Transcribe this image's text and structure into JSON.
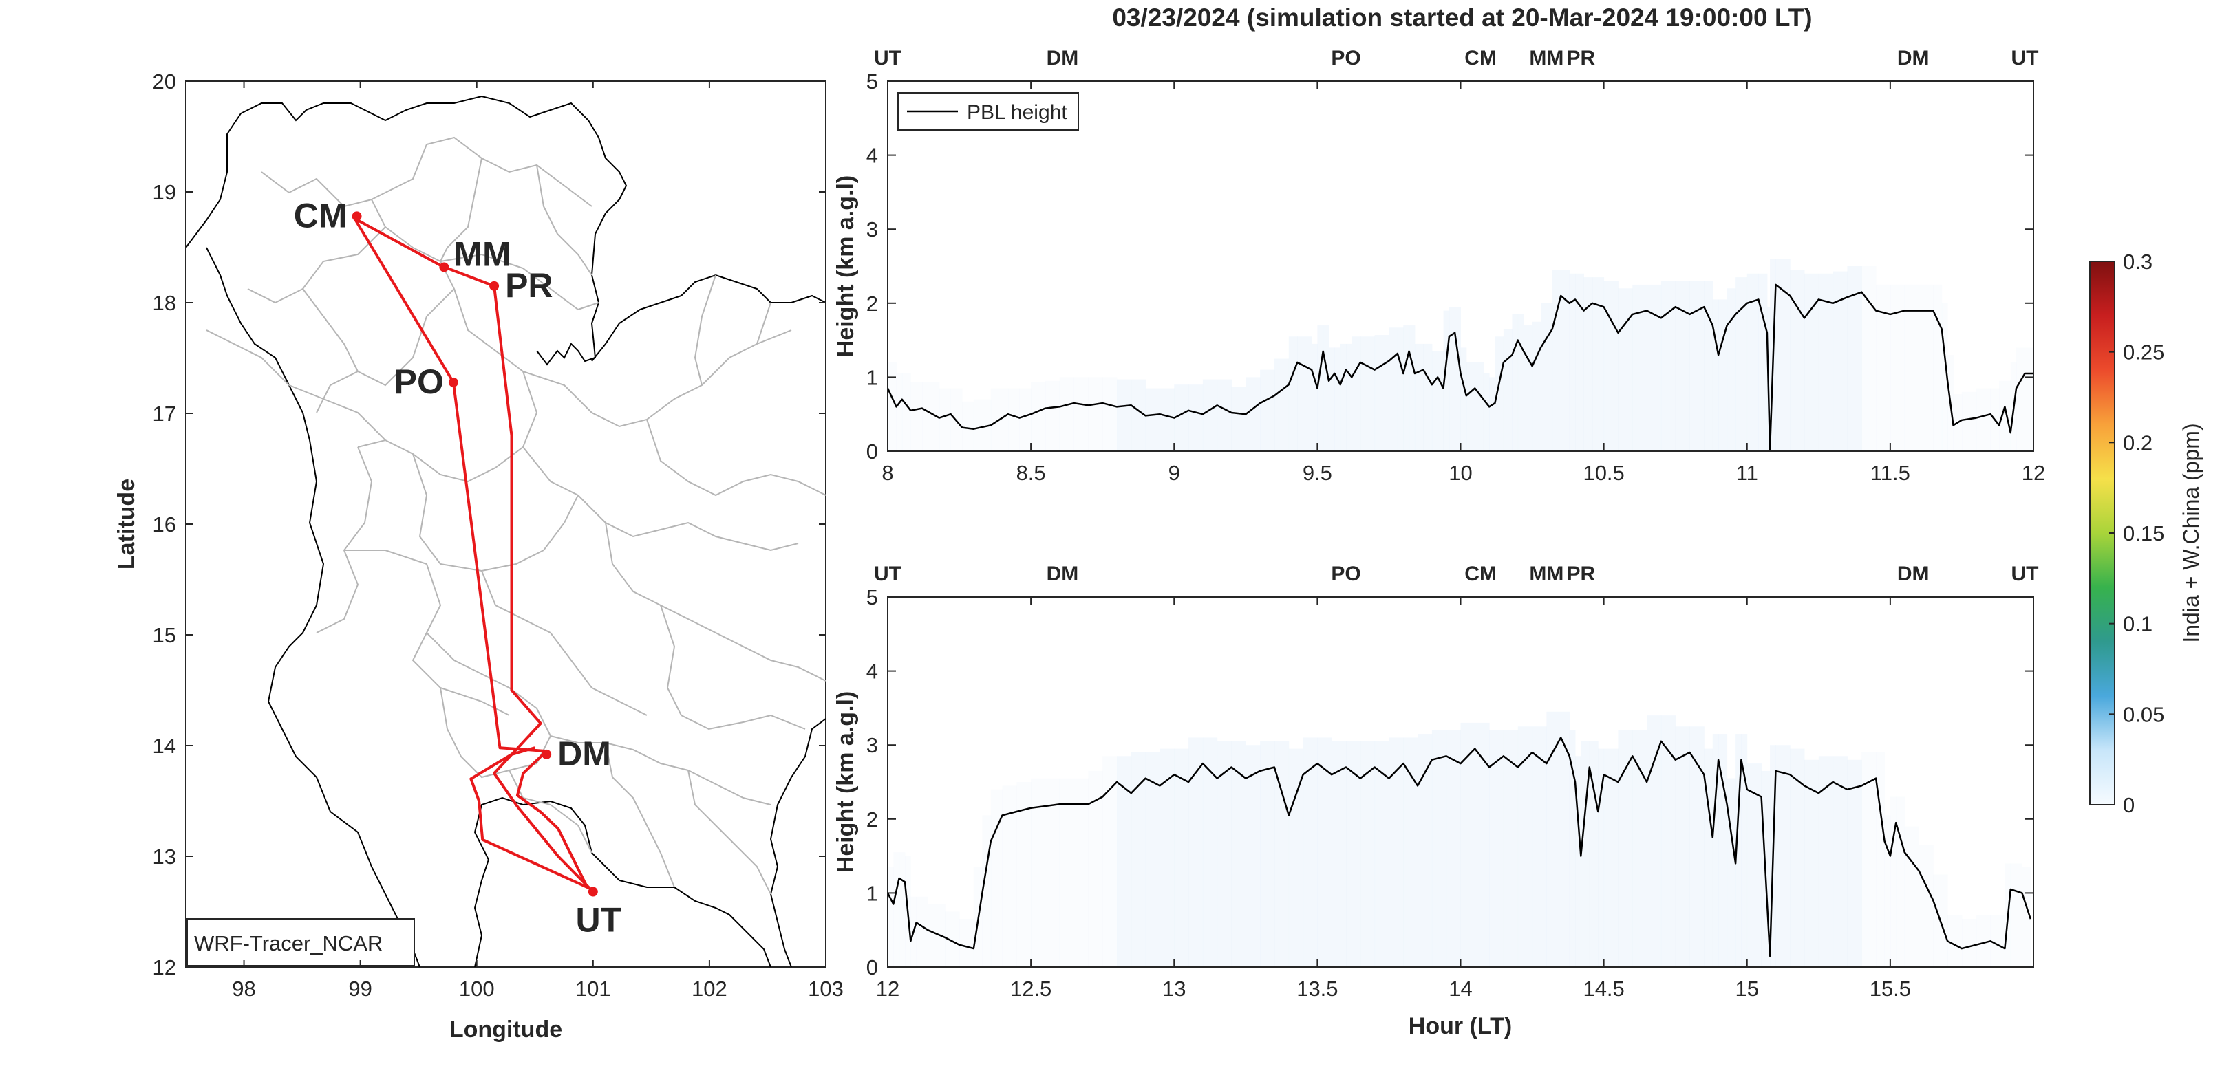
{
  "figure": {
    "title": "03/23/2024 (simulation started at 20-Mar-2024 19:00:00 LT)"
  },
  "map": {
    "xlabel": "Longitude",
    "ylabel": "Latitude",
    "xlim": [
      97.5,
      103
    ],
    "ylim": [
      12,
      20
    ],
    "xticks": [
      "98",
      "99",
      "100",
      "101",
      "102",
      "103"
    ],
    "yticks": [
      "12",
      "13",
      "14",
      "15",
      "16",
      "17",
      "18",
      "19",
      "20"
    ],
    "model_label": "WRF-Tracer_NCAR",
    "route_color": "#e8181b",
    "route": [
      [
        101.0,
        12.68
      ],
      [
        100.7,
        13.0
      ],
      [
        100.35,
        13.45
      ],
      [
        100.15,
        13.75
      ],
      [
        100.55,
        14.2
      ],
      [
        100.3,
        14.5
      ],
      [
        100.3,
        16.8
      ],
      [
        100.15,
        18.15
      ],
      [
        99.7,
        18.33
      ],
      [
        98.95,
        18.76
      ],
      [
        99.8,
        17.28
      ],
      [
        100.2,
        13.98
      ],
      [
        100.6,
        13.95
      ],
      [
        100.4,
        13.75
      ],
      [
        100.35,
        13.55
      ],
      [
        100.55,
        13.4
      ],
      [
        100.7,
        13.25
      ],
      [
        100.95,
        12.72
      ],
      [
        100.05,
        13.15
      ],
      [
        100.02,
        13.5
      ],
      [
        99.95,
        13.7
      ],
      [
        100.3,
        13.92
      ],
      [
        100.5,
        13.98
      ]
    ],
    "sites": [
      {
        "code": "CM",
        "lon": 98.97,
        "lat": 18.78,
        "color": "#d95319",
        "label_side": "left"
      },
      {
        "code": "MM",
        "lon": 99.72,
        "lat": 18.32,
        "color": "#edb120",
        "label_side": "right-up"
      },
      {
        "code": "PR",
        "lon": 100.15,
        "lat": 18.15,
        "color": "#7e2f8e",
        "label_side": "right"
      },
      {
        "code": "PO",
        "lon": 99.8,
        "lat": 17.28,
        "color": "#77ac30",
        "label_side": "left"
      },
      {
        "code": "DM",
        "lon": 100.6,
        "lat": 13.92,
        "color": "#4dbeee",
        "label_side": "right"
      },
      {
        "code": "UT",
        "lon": 101.0,
        "lat": 12.68,
        "color": "#111111",
        "label_side": "below"
      }
    ]
  },
  "chart_data": [
    {
      "type": "line",
      "ylabel": "Height (km a.g.l)",
      "xlabel": "",
      "xlim": [
        8,
        12
      ],
      "ylim": [
        0,
        5
      ],
      "xticks": [
        "8",
        "8.5",
        "9",
        "9.5",
        "10",
        "10.5",
        "11",
        "11.5",
        "12"
      ],
      "yticks": [
        "0",
        "1",
        "2",
        "3",
        "4",
        "5"
      ],
      "legend": {
        "label": "PBL height",
        "placement": "top-left"
      },
      "top_markers": [
        {
          "code": "UT",
          "x": 8.0,
          "color": "#111111"
        },
        {
          "code": "DM",
          "x": 8.61,
          "color": "#4dbeee"
        },
        {
          "code": "PO",
          "x": 9.6,
          "color": "#77ac30"
        },
        {
          "code": "CM",
          "x": 10.07,
          "color": "#d95319"
        },
        {
          "code": "MM",
          "x": 10.3,
          "color": "#edb120"
        },
        {
          "code": "PR",
          "x": 10.42,
          "color": "#7e2f8e"
        },
        {
          "code": "DM",
          "x": 11.58,
          "color": "#4dbeee"
        },
        {
          "code": "UT",
          "x": 11.97,
          "color": "#111111"
        }
      ],
      "series": [
        {
          "name": "PBL height",
          "color": "#000000",
          "points": [
            [
              8.0,
              0.85
            ],
            [
              8.03,
              0.6
            ],
            [
              8.05,
              0.7
            ],
            [
              8.08,
              0.55
            ],
            [
              8.12,
              0.58
            ],
            [
              8.18,
              0.45
            ],
            [
              8.22,
              0.5
            ],
            [
              8.26,
              0.32
            ],
            [
              8.3,
              0.3
            ],
            [
              8.36,
              0.35
            ],
            [
              8.42,
              0.5
            ],
            [
              8.46,
              0.45
            ],
            [
              8.5,
              0.5
            ],
            [
              8.55,
              0.58
            ],
            [
              8.6,
              0.6
            ],
            [
              8.65,
              0.65
            ],
            [
              8.7,
              0.62
            ],
            [
              8.75,
              0.65
            ],
            [
              8.8,
              0.6
            ],
            [
              8.85,
              0.62
            ],
            [
              8.9,
              0.48
            ],
            [
              8.95,
              0.5
            ],
            [
              9.0,
              0.45
            ],
            [
              9.05,
              0.55
            ],
            [
              9.1,
              0.5
            ],
            [
              9.15,
              0.62
            ],
            [
              9.2,
              0.52
            ],
            [
              9.25,
              0.5
            ],
            [
              9.3,
              0.65
            ],
            [
              9.35,
              0.75
            ],
            [
              9.4,
              0.9
            ],
            [
              9.43,
              1.2
            ],
            [
              9.48,
              1.1
            ],
            [
              9.5,
              0.85
            ],
            [
              9.52,
              1.35
            ],
            [
              9.54,
              0.95
            ],
            [
              9.56,
              1.05
            ],
            [
              9.58,
              0.9
            ],
            [
              9.6,
              1.1
            ],
            [
              9.62,
              1.0
            ],
            [
              9.65,
              1.2
            ],
            [
              9.7,
              1.1
            ],
            [
              9.75,
              1.22
            ],
            [
              9.78,
              1.32
            ],
            [
              9.8,
              1.05
            ],
            [
              9.82,
              1.35
            ],
            [
              9.84,
              1.05
            ],
            [
              9.87,
              1.1
            ],
            [
              9.9,
              0.9
            ],
            [
              9.92,
              1.0
            ],
            [
              9.94,
              0.85
            ],
            [
              9.96,
              1.55
            ],
            [
              9.98,
              1.6
            ],
            [
              10.0,
              1.05
            ],
            [
              10.02,
              0.75
            ],
            [
              10.05,
              0.85
            ],
            [
              10.08,
              0.7
            ],
            [
              10.1,
              0.6
            ],
            [
              10.12,
              0.65
            ],
            [
              10.15,
              1.2
            ],
            [
              10.18,
              1.3
            ],
            [
              10.2,
              1.5
            ],
            [
              10.22,
              1.35
            ],
            [
              10.25,
              1.15
            ],
            [
              10.28,
              1.4
            ],
            [
              10.32,
              1.65
            ],
            [
              10.35,
              2.1
            ],
            [
              10.38,
              2.0
            ],
            [
              10.4,
              2.05
            ],
            [
              10.43,
              1.9
            ],
            [
              10.46,
              2.0
            ],
            [
              10.5,
              1.95
            ],
            [
              10.55,
              1.6
            ],
            [
              10.6,
              1.85
            ],
            [
              10.65,
              1.9
            ],
            [
              10.7,
              1.8
            ],
            [
              10.75,
              1.95
            ],
            [
              10.8,
              1.85
            ],
            [
              10.85,
              1.95
            ],
            [
              10.88,
              1.7
            ],
            [
              10.9,
              1.3
            ],
            [
              10.93,
              1.7
            ],
            [
              10.96,
              1.85
            ],
            [
              11.0,
              2.0
            ],
            [
              11.04,
              2.05
            ],
            [
              11.07,
              1.6
            ],
            [
              11.08,
              0.02
            ],
            [
              11.1,
              2.25
            ],
            [
              11.15,
              2.1
            ],
            [
              11.2,
              1.8
            ],
            [
              11.25,
              2.05
            ],
            [
              11.3,
              2.0
            ],
            [
              11.35,
              2.08
            ],
            [
              11.4,
              2.15
            ],
            [
              11.45,
              1.9
            ],
            [
              11.5,
              1.85
            ],
            [
              11.55,
              1.9
            ],
            [
              11.65,
              1.9
            ],
            [
              11.68,
              1.65
            ],
            [
              11.7,
              0.95
            ],
            [
              11.72,
              0.35
            ],
            [
              11.75,
              0.42
            ],
            [
              11.8,
              0.45
            ],
            [
              11.85,
              0.5
            ],
            [
              11.88,
              0.35
            ],
            [
              11.9,
              0.6
            ],
            [
              11.92,
              0.25
            ],
            [
              11.94,
              0.85
            ],
            [
              11.97,
              1.05
            ],
            [
              12.0,
              1.05
            ]
          ]
        }
      ]
    },
    {
      "type": "line",
      "ylabel": "Height (km a.g.l)",
      "xlabel": "Hour (LT)",
      "xlim": [
        12,
        16
      ],
      "ylim": [
        0,
        5
      ],
      "xticks": [
        "12",
        "12.5",
        "13",
        "13.5",
        "14",
        "14.5",
        "15",
        "15.5"
      ],
      "yticks": [
        "0",
        "1",
        "2",
        "3",
        "4",
        "5"
      ],
      "top_markers": [
        {
          "code": "UT",
          "x": 12.0,
          "color": "#111111"
        },
        {
          "code": "DM",
          "x": 12.61,
          "color": "#4dbeee"
        },
        {
          "code": "PO",
          "x": 13.6,
          "color": "#77ac30"
        },
        {
          "code": "CM",
          "x": 14.07,
          "color": "#d95319"
        },
        {
          "code": "MM",
          "x": 14.3,
          "color": "#edb120"
        },
        {
          "code": "PR",
          "x": 14.42,
          "color": "#7e2f8e"
        },
        {
          "code": "DM",
          "x": 15.58,
          "color": "#4dbeee"
        },
        {
          "code": "UT",
          "x": 15.97,
          "color": "#111111"
        }
      ],
      "series": [
        {
          "name": "PBL height",
          "color": "#000000",
          "points": [
            [
              12.0,
              1.0
            ],
            [
              12.02,
              0.85
            ],
            [
              12.04,
              1.2
            ],
            [
              12.06,
              1.15
            ],
            [
              12.08,
              0.35
            ],
            [
              12.1,
              0.6
            ],
            [
              12.14,
              0.5
            ],
            [
              12.2,
              0.4
            ],
            [
              12.25,
              0.3
            ],
            [
              12.3,
              0.25
            ],
            [
              12.33,
              1.0
            ],
            [
              12.36,
              1.7
            ],
            [
              12.4,
              2.05
            ],
            [
              12.45,
              2.1
            ],
            [
              12.5,
              2.15
            ],
            [
              12.6,
              2.2
            ],
            [
              12.7,
              2.2
            ],
            [
              12.75,
              2.3
            ],
            [
              12.8,
              2.5
            ],
            [
              12.85,
              2.35
            ],
            [
              12.9,
              2.55
            ],
            [
              12.95,
              2.45
            ],
            [
              13.0,
              2.6
            ],
            [
              13.05,
              2.5
            ],
            [
              13.1,
              2.75
            ],
            [
              13.15,
              2.55
            ],
            [
              13.2,
              2.7
            ],
            [
              13.25,
              2.55
            ],
            [
              13.3,
              2.65
            ],
            [
              13.35,
              2.7
            ],
            [
              13.4,
              2.05
            ],
            [
              13.45,
              2.6
            ],
            [
              13.5,
              2.75
            ],
            [
              13.55,
              2.6
            ],
            [
              13.6,
              2.7
            ],
            [
              13.65,
              2.55
            ],
            [
              13.7,
              2.7
            ],
            [
              13.75,
              2.55
            ],
            [
              13.8,
              2.75
            ],
            [
              13.85,
              2.45
            ],
            [
              13.9,
              2.8
            ],
            [
              13.95,
              2.85
            ],
            [
              14.0,
              2.75
            ],
            [
              14.05,
              2.95
            ],
            [
              14.1,
              2.7
            ],
            [
              14.15,
              2.85
            ],
            [
              14.2,
              2.7
            ],
            [
              14.25,
              2.9
            ],
            [
              14.3,
              2.75
            ],
            [
              14.35,
              3.1
            ],
            [
              14.38,
              2.85
            ],
            [
              14.4,
              2.5
            ],
            [
              14.42,
              1.5
            ],
            [
              14.45,
              2.7
            ],
            [
              14.48,
              2.1
            ],
            [
              14.5,
              2.6
            ],
            [
              14.55,
              2.5
            ],
            [
              14.6,
              2.85
            ],
            [
              14.65,
              2.5
            ],
            [
              14.7,
              3.05
            ],
            [
              14.75,
              2.8
            ],
            [
              14.8,
              2.9
            ],
            [
              14.85,
              2.6
            ],
            [
              14.88,
              1.75
            ],
            [
              14.9,
              2.8
            ],
            [
              14.93,
              2.2
            ],
            [
              14.96,
              1.4
            ],
            [
              14.98,
              2.8
            ],
            [
              15.0,
              2.4
            ],
            [
              15.05,
              2.3
            ],
            [
              15.08,
              0.15
            ],
            [
              15.1,
              2.65
            ],
            [
              15.15,
              2.6
            ],
            [
              15.2,
              2.45
            ],
            [
              15.25,
              2.35
            ],
            [
              15.3,
              2.5
            ],
            [
              15.35,
              2.4
            ],
            [
              15.4,
              2.45
            ],
            [
              15.45,
              2.55
            ],
            [
              15.48,
              1.7
            ],
            [
              15.5,
              1.5
            ],
            [
              15.52,
              1.95
            ],
            [
              15.55,
              1.55
            ],
            [
              15.6,
              1.3
            ],
            [
              15.65,
              0.9
            ],
            [
              15.7,
              0.35
            ],
            [
              15.75,
              0.25
            ],
            [
              15.8,
              0.3
            ],
            [
              15.85,
              0.35
            ],
            [
              15.9,
              0.25
            ],
            [
              15.92,
              1.05
            ],
            [
              15.96,
              1.0
            ],
            [
              15.99,
              0.65
            ]
          ]
        }
      ]
    }
  ],
  "colorbar": {
    "label": "India + W.China (ppm)",
    "ticks": [
      "0",
      "0.05",
      "0.1",
      "0.15",
      "0.2",
      "0.25",
      "0.3"
    ],
    "range": [
      0,
      0.3
    ],
    "colors": [
      "#f6fbff",
      "#c8e6fa",
      "#4aa8dc",
      "#2f9a8e",
      "#37b24d",
      "#a9d43a",
      "#f6e04a",
      "#f8a13a",
      "#ec4b2c",
      "#c81f1f",
      "#7f1010"
    ]
  }
}
